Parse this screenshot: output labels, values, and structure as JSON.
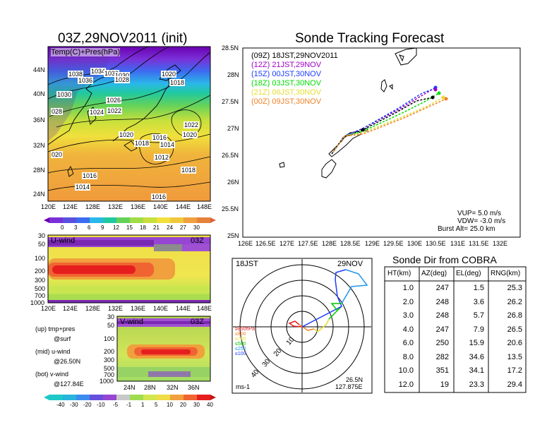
{
  "left_map": {
    "title": "03Z,29NOV2011 (init)",
    "label": "Temp(C)+Pres(hPa)",
    "lat_labels": [
      "44N",
      "40N",
      "36N",
      "32N",
      "28N",
      "24N"
    ],
    "lon_labels": [
      "120E",
      "124E",
      "128E",
      "132E",
      "136E",
      "140E",
      "144E",
      "148E"
    ],
    "isobar_labels": [
      "1038",
      "1034",
      "1032",
      "1030",
      "1028",
      "1036",
      "1030",
      "1026",
      "1024",
      "1022",
      "028",
      "1020",
      "1018",
      "1020",
      "1016",
      "1018",
      "1014",
      "1022",
      "1020",
      "1012",
      "020",
      "1016",
      "1014",
      "1018",
      "1016"
    ],
    "colorbar_ticks": [
      "0",
      "3",
      "6",
      "9",
      "12",
      "15",
      "18",
      "21",
      "24",
      "27",
      "30"
    ]
  },
  "uwind": {
    "label": "U-wind",
    "time": "03Z",
    "y_ticks": [
      "30",
      "50",
      "100",
      "200",
      "300",
      "500",
      "700",
      "1000"
    ],
    "x_ticks": [
      "120E",
      "124E",
      "128E",
      "132E",
      "136E",
      "140E",
      "144E",
      "148E"
    ]
  },
  "vwind": {
    "label": "V-wind",
    "time": "03Z",
    "y_ticks": [
      "30",
      "50",
      "100",
      "200",
      "300",
      "500",
      "700",
      "1000"
    ],
    "x_ticks": [
      "24N",
      "28N",
      "32N",
      "36N"
    ]
  },
  "legend_text": {
    "line1": "(up) tmp+pres",
    "line2": "@surf",
    "line3": "(mid) u-wind",
    "line4": "@26.50N",
    "line5": "(bot) v-wind",
    "line6": "@127.84E"
  },
  "wind_colorbar_ticks": [
    "-40",
    "-30",
    "-20",
    "-10",
    "-5",
    "-1",
    "1",
    "5",
    "10",
    "20",
    "30",
    "40"
  ],
  "tracking": {
    "title": "Sonde Tracking Forecast",
    "lat_labels": [
      "28.5N",
      "28N",
      "27.5N",
      "27N",
      "26.5N",
      "26N",
      "25.5N",
      "25N"
    ],
    "lon_labels": [
      "126E",
      "126.5E",
      "127E",
      "127.5E",
      "128E",
      "128.5E",
      "129E",
      "129.5E",
      "130E",
      "130.5E",
      "131E",
      "131.5E",
      "132E"
    ],
    "legend": [
      {
        "code": "(09Z)",
        "time": "18JST,29NOV2011",
        "color": "#000000"
      },
      {
        "code": "(12Z)",
        "time": "21JST,29NOV",
        "color": "#a000c8"
      },
      {
        "code": "(15Z)",
        "time": "00JST,30NOV",
        "color": "#1e3cff"
      },
      {
        "code": "(18Z)",
        "time": "03JST,30NOV",
        "color": "#00dc00"
      },
      {
        "code": "(21Z)",
        "time": "06JST,30NOV",
        "color": "#e6dc32"
      },
      {
        "code": "(00Z)",
        "time": "09JST,30NOV",
        "color": "#f08228"
      }
    ],
    "info1": "VUP=  5.0  m/s",
    "info2": "VDW= -3.0  m/s",
    "info3": "Burst Alt=  25.0  km"
  },
  "polar": {
    "time_label": "18JST",
    "date_label": "29NOV",
    "ring_labels": [
      "10",
      "20",
      "30",
      "40"
    ],
    "unit": "ms-1",
    "loc1": "26.5N",
    "loc2": "127.875E",
    "levels": [
      {
        "text": "≥850hPa",
        "color": "#e61e1e"
      },
      {
        "text": "≤850",
        "color": "#f08228"
      },
      {
        "text": "≤700",
        "color": "#e6dc32"
      },
      {
        "text": "≤500",
        "color": "#00c800"
      },
      {
        "text": "≤250",
        "color": "#1e96f0"
      },
      {
        "text": "≤100",
        "color": "#1e3cff"
      }
    ]
  },
  "chart_data": {
    "type": "table",
    "title": "Sonde Dir from COBRA",
    "columns": [
      "HT(km)",
      "AZ(deg)",
      "EL(deg)",
      "RNG(km)"
    ],
    "rows": [
      [
        "1.0",
        "247",
        "1.5",
        "25.3"
      ],
      [
        "2.0",
        "248",
        "3.6",
        "26.2"
      ],
      [
        "3.0",
        "248",
        "5.7",
        "26.8"
      ],
      [
        "4.0",
        "247",
        "7.9",
        "26.5"
      ],
      [
        "6.0",
        "250",
        "15.9",
        "20.6"
      ],
      [
        "8.0",
        "282",
        "34.6",
        "13.5"
      ],
      [
        "10.0",
        "351",
        "34.1",
        "17.2"
      ],
      [
        "12.0",
        "19",
        "23.3",
        "29.4"
      ]
    ]
  }
}
